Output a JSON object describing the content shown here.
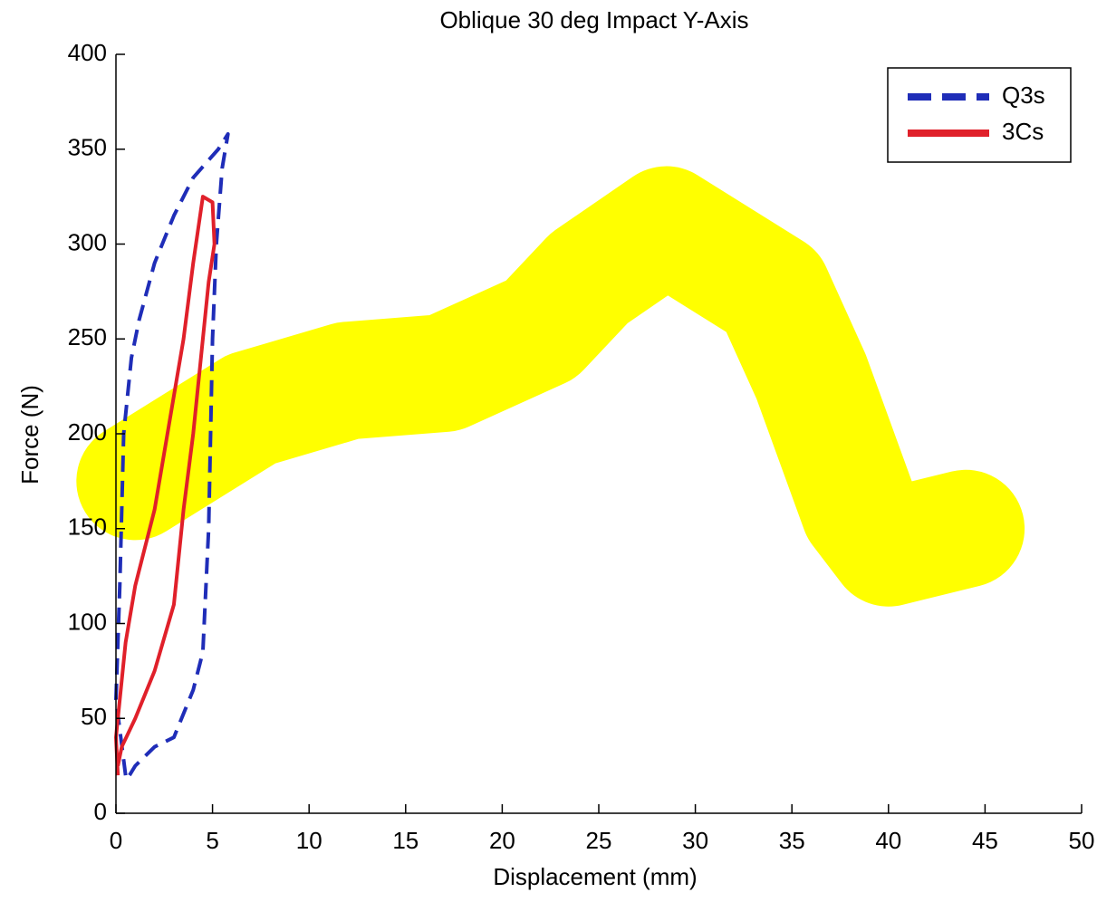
{
  "chart_data": {
    "type": "line",
    "title": "Oblique 30 deg Impact Y-Axis",
    "x_label": "Displacement (mm)",
    "y_label": "Force (N)",
    "xlim": [
      0,
      50
    ],
    "xticks": [
      0,
      5,
      10,
      15,
      20,
      25,
      30,
      35,
      40,
      45,
      50
    ],
    "ylim": [
      0,
      400
    ],
    "yticks": [
      0,
      50,
      100,
      150,
      200,
      250,
      300,
      350,
      400
    ],
    "legend": "upper right",
    "series": [
      {
        "color": "#ffff00",
        "line_style": "band",
        "x": [
          1,
          7,
          12,
          17,
          22,
          24.5,
          28.5,
          34,
          36,
          38.5,
          40,
          44
        ],
        "values": [
          175,
          213,
          228,
          232,
          255,
          282,
          310,
          275,
          230,
          160,
          140,
          150
        ]
      },
      {
        "name": "Q3s",
        "color": "#1f2db8",
        "line_style": "dashed",
        "x": [
          0.5,
          0,
          0.2,
          0.4,
          0.8,
          1.2,
          2,
          3,
          4,
          5.3,
          5.8,
          5.5,
          5.2,
          5,
          4.9,
          4.8,
          4.5,
          4,
          3,
          2,
          1,
          0.7
        ],
        "values": [
          20,
          60,
          120,
          200,
          240,
          260,
          290,
          315,
          335,
          350,
          358,
          340,
          300,
          250,
          200,
          150,
          85,
          65,
          40,
          35,
          25,
          20
        ]
      },
      {
        "name": "3Cs",
        "color": "#e0202a",
        "line_style": "solid",
        "x": [
          0.1,
          0,
          0.5,
          1,
          2,
          3,
          3.5,
          4,
          4.5,
          5,
          5.1,
          4.8,
          4.5,
          4,
          3.5,
          3,
          2,
          1,
          0.3,
          0.1
        ],
        "values": [
          20,
          40,
          90,
          120,
          160,
          220,
          250,
          290,
          325,
          322,
          300,
          280,
          250,
          200,
          160,
          110,
          75,
          50,
          35,
          25
        ]
      }
    ]
  }
}
